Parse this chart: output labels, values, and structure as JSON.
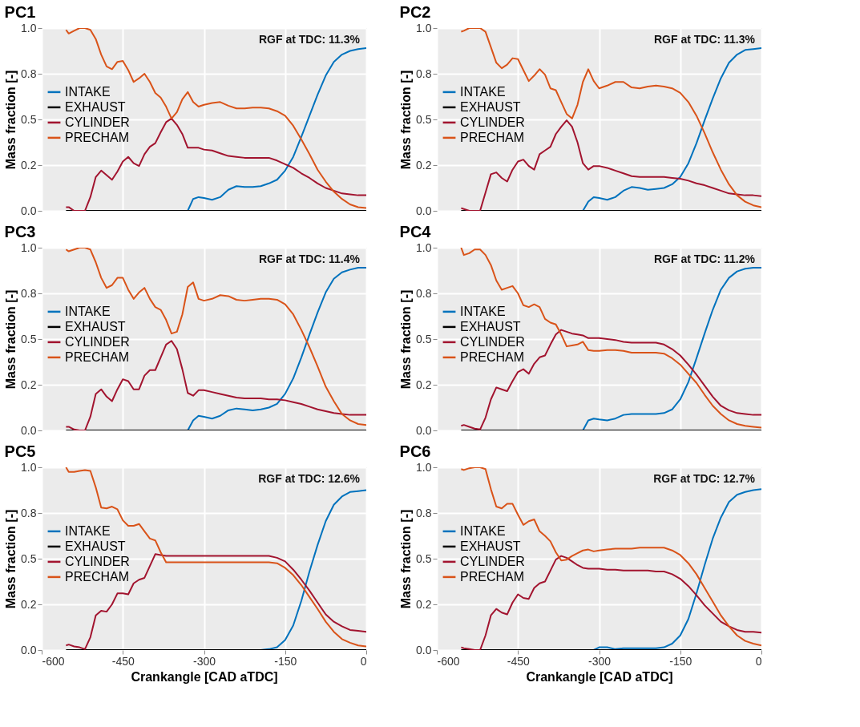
{
  "chart_data": [
    {
      "type": "line",
      "title": "PC1",
      "ylabel": "Mass fraction [-]",
      "annotations": [
        "RGF at TDC: 11.3%"
      ],
      "legend": "left",
      "grid": true,
      "tick_labels": "y",
      "xlim": [
        -600,
        0
      ],
      "xticks": [
        -600,
        -450,
        -300,
        -150,
        0
      ],
      "ylim": [
        0,
        1
      ],
      "yticks": [
        {
          "value": 0,
          "label": "0.0"
        },
        {
          "value": 0.25,
          "label": "0.2"
        },
        {
          "value": 0.5,
          "label": "0.5"
        },
        {
          "value": 0.75,
          "label": "0.8"
        },
        {
          "value": 1,
          "label": "1.0"
        }
      ],
      "x": [
        -555,
        -550,
        -540,
        -530,
        -520,
        -510,
        -500,
        -490,
        -480,
        -470,
        -460,
        -450,
        -440,
        -430,
        -420,
        -410,
        -400,
        -390,
        -380,
        -370,
        -360,
        -350,
        -340,
        -330,
        -320,
        -310,
        -300,
        -285,
        -270,
        -255,
        -240,
        -225,
        -210,
        -195,
        -180,
        -165,
        -150,
        -135,
        -120,
        -105,
        -90,
        -75,
        -60,
        -45,
        -30,
        -15,
        0
      ],
      "series": [
        {
          "name": "INTAKE",
          "color": "#0072bd",
          "values": [
            null,
            null,
            null,
            null,
            null,
            null,
            null,
            null,
            null,
            null,
            null,
            null,
            null,
            null,
            null,
            null,
            null,
            null,
            null,
            null,
            null,
            null,
            null,
            0,
            0.065,
            0.075,
            0.07,
            0.06,
            0.075,
            0.115,
            0.135,
            0.13,
            0.13,
            0.135,
            0.15,
            0.17,
            0.22,
            0.295,
            0.405,
            0.52,
            0.635,
            0.74,
            0.815,
            0.855,
            0.875,
            0.885,
            0.89
          ]
        },
        {
          "name": "EXHAUST",
          "color": "#000000",
          "values": [
            0,
            0,
            0,
            0,
            0,
            0,
            0,
            0,
            0,
            0,
            0,
            0,
            0,
            0,
            0,
            0,
            0,
            0,
            0,
            0,
            0,
            0,
            0,
            0,
            0,
            0,
            0,
            0,
            0,
            0,
            0,
            0,
            0,
            0,
            0,
            0,
            0,
            0,
            0,
            0,
            0,
            0,
            0,
            0,
            0,
            0,
            0
          ]
        },
        {
          "name": "CYLINDER",
          "color": "#a2142f",
          "values": [
            0.02,
            0.02,
            0.0,
            0.0,
            0.0,
            0.075,
            0.185,
            0.22,
            0.195,
            0.17,
            0.215,
            0.27,
            0.295,
            0.26,
            0.245,
            0.31,
            0.35,
            0.37,
            0.43,
            0.485,
            0.505,
            0.47,
            0.42,
            0.345,
            0.345,
            0.345,
            0.335,
            0.33,
            0.315,
            0.3,
            0.295,
            0.29,
            0.29,
            0.29,
            0.29,
            0.275,
            0.255,
            0.235,
            0.205,
            0.18,
            0.15,
            0.125,
            0.11,
            0.095,
            0.09,
            0.085,
            0.085
          ]
        },
        {
          "name": "PRECHAM",
          "color": "#d95319",
          "values": [
            0.99,
            0.97,
            0.985,
            1.0,
            1.0,
            0.99,
            0.94,
            0.855,
            0.79,
            0.775,
            0.815,
            0.82,
            0.77,
            0.705,
            0.725,
            0.75,
            0.705,
            0.645,
            0.62,
            0.57,
            0.505,
            0.54,
            0.61,
            0.65,
            0.595,
            0.57,
            0.58,
            0.59,
            0.595,
            0.575,
            0.56,
            0.56,
            0.565,
            0.565,
            0.56,
            0.545,
            0.52,
            0.465,
            0.39,
            0.31,
            0.225,
            0.16,
            0.105,
            0.065,
            0.035,
            0.02,
            0.015
          ]
        }
      ]
    },
    {
      "type": "line",
      "title": "PC2",
      "ylabel": "Mass fraction [-]",
      "annotations": [
        "RGF at TDC: 11.3%"
      ],
      "legend": "left",
      "grid": true,
      "tick_labels": "y",
      "xlim": [
        -600,
        0
      ],
      "xticks": [
        -600,
        -450,
        -300,
        -150,
        0
      ],
      "ylim": [
        0,
        1
      ],
      "yticks": [
        {
          "value": 0,
          "label": "0.0"
        },
        {
          "value": 0.25,
          "label": "0.2"
        },
        {
          "value": 0.5,
          "label": "0.5"
        },
        {
          "value": 0.75,
          "label": "0.8"
        },
        {
          "value": 1,
          "label": "1.0"
        }
      ],
      "x": [
        -555,
        -550,
        -540,
        -530,
        -520,
        -510,
        -500,
        -490,
        -480,
        -470,
        -460,
        -450,
        -440,
        -430,
        -420,
        -410,
        -400,
        -390,
        -380,
        -370,
        -360,
        -350,
        -340,
        -330,
        -320,
        -310,
        -300,
        -285,
        -270,
        -255,
        -240,
        -225,
        -210,
        -195,
        -180,
        -165,
        -150,
        -135,
        -120,
        -105,
        -90,
        -75,
        -60,
        -45,
        -30,
        -15,
        0
      ],
      "series": [
        {
          "name": "INTAKE",
          "color": "#0072bd",
          "values": [
            null,
            null,
            null,
            null,
            null,
            null,
            null,
            null,
            null,
            null,
            null,
            null,
            null,
            null,
            null,
            null,
            null,
            null,
            null,
            null,
            null,
            null,
            null,
            0,
            0.05,
            0.075,
            0.07,
            0.06,
            0.075,
            0.11,
            0.13,
            0.125,
            0.115,
            0.12,
            0.125,
            0.145,
            0.185,
            0.26,
            0.37,
            0.495,
            0.615,
            0.725,
            0.81,
            0.855,
            0.88,
            0.885,
            0.89
          ]
        },
        {
          "name": "EXHAUST",
          "color": "#000000",
          "values": [
            0,
            0,
            0,
            0,
            0,
            0,
            0,
            0,
            0,
            0,
            0,
            0,
            0,
            0,
            0,
            0,
            0,
            0,
            0,
            0,
            0,
            0,
            0,
            0,
            0,
            0,
            0,
            0,
            0,
            0,
            0,
            0,
            0,
            0,
            0,
            0,
            0,
            0,
            0,
            0,
            0,
            0,
            0,
            0,
            0,
            0,
            0
          ]
        },
        {
          "name": "CYLINDER",
          "color": "#a2142f",
          "values": [
            0.015,
            0.01,
            0,
            0,
            0,
            0.1,
            0.2,
            0.21,
            0.18,
            0.16,
            0.225,
            0.27,
            0.28,
            0.245,
            0.225,
            0.31,
            0.33,
            0.35,
            0.42,
            0.46,
            0.495,
            0.46,
            0.375,
            0.26,
            0.225,
            0.245,
            0.245,
            0.235,
            0.22,
            0.205,
            0.19,
            0.185,
            0.185,
            0.185,
            0.185,
            0.18,
            0.175,
            0.165,
            0.15,
            0.14,
            0.125,
            0.11,
            0.095,
            0.09,
            0.085,
            0.085,
            0.08
          ]
        },
        {
          "name": "PRECHAM",
          "color": "#d95319",
          "values": [
            0.98,
            0.985,
            1.0,
            1.0,
            1.0,
            0.98,
            0.895,
            0.81,
            0.78,
            0.8,
            0.835,
            0.83,
            0.77,
            0.71,
            0.74,
            0.775,
            0.745,
            0.67,
            0.66,
            0.595,
            0.53,
            0.505,
            0.58,
            0.705,
            0.775,
            0.71,
            0.67,
            0.685,
            0.705,
            0.705,
            0.675,
            0.67,
            0.68,
            0.685,
            0.68,
            0.67,
            0.645,
            0.595,
            0.52,
            0.425,
            0.32,
            0.225,
            0.145,
            0.085,
            0.05,
            0.03,
            0.02
          ]
        }
      ]
    },
    {
      "type": "line",
      "title": "PC3",
      "ylabel": "Mass fraction [-]",
      "annotations": [
        "RGF at TDC: 11.4%"
      ],
      "legend": "left",
      "grid": true,
      "tick_labels": "y",
      "xlim": [
        -600,
        0
      ],
      "xticks": [
        -600,
        -450,
        -300,
        -150,
        0
      ],
      "ylim": [
        0,
        1
      ],
      "yticks": [
        {
          "value": 0,
          "label": "0.0"
        },
        {
          "value": 0.25,
          "label": "0.2"
        },
        {
          "value": 0.5,
          "label": "0.5"
        },
        {
          "value": 0.75,
          "label": "0.8"
        },
        {
          "value": 1,
          "label": "1.0"
        }
      ],
      "x": [
        -555,
        -550,
        -540,
        -530,
        -520,
        -510,
        -500,
        -490,
        -480,
        -470,
        -460,
        -450,
        -440,
        -430,
        -420,
        -410,
        -400,
        -390,
        -380,
        -370,
        -360,
        -350,
        -340,
        -330,
        -320,
        -310,
        -300,
        -285,
        -270,
        -255,
        -240,
        -225,
        -210,
        -195,
        -180,
        -165,
        -150,
        -135,
        -120,
        -105,
        -90,
        -75,
        -60,
        -45,
        -30,
        -15,
        0
      ],
      "series": [
        {
          "name": "INTAKE",
          "color": "#0072bd",
          "values": [
            null,
            null,
            null,
            null,
            null,
            null,
            null,
            null,
            null,
            null,
            null,
            null,
            null,
            null,
            null,
            null,
            null,
            null,
            null,
            null,
            null,
            null,
            null,
            0,
            0.055,
            0.08,
            0.075,
            0.065,
            0.08,
            0.11,
            0.12,
            0.115,
            0.11,
            0.115,
            0.125,
            0.145,
            0.2,
            0.285,
            0.4,
            0.525,
            0.645,
            0.755,
            0.83,
            0.865,
            0.88,
            0.89,
            0.89
          ]
        },
        {
          "name": "EXHAUST",
          "color": "#000000",
          "values": [
            0,
            0,
            0,
            0,
            0,
            0,
            0,
            0,
            0,
            0,
            0,
            0,
            0,
            0,
            0,
            0,
            0,
            0,
            0,
            0,
            0,
            0,
            0,
            0,
            0,
            0,
            0,
            0,
            0,
            0,
            0,
            0,
            0,
            0,
            0,
            0,
            0,
            0,
            0,
            0,
            0,
            0,
            0,
            0,
            0,
            0,
            0
          ]
        },
        {
          "name": "CYLINDER",
          "color": "#a2142f",
          "values": [
            0.02,
            0.02,
            0.005,
            0,
            0,
            0.075,
            0.2,
            0.225,
            0.185,
            0.16,
            0.225,
            0.28,
            0.27,
            0.225,
            0.225,
            0.3,
            0.33,
            0.33,
            0.4,
            0.47,
            0.49,
            0.445,
            0.335,
            0.205,
            0.19,
            0.22,
            0.22,
            0.21,
            0.2,
            0.19,
            0.18,
            0.175,
            0.175,
            0.175,
            0.17,
            0.17,
            0.165,
            0.155,
            0.145,
            0.13,
            0.115,
            0.105,
            0.095,
            0.09,
            0.085,
            0.085,
            0.085
          ]
        },
        {
          "name": "PRECHAM",
          "color": "#d95319",
          "values": [
            0.99,
            0.98,
            0.99,
            1.0,
            1.0,
            0.99,
            0.92,
            0.835,
            0.78,
            0.795,
            0.835,
            0.835,
            0.77,
            0.72,
            0.755,
            0.78,
            0.72,
            0.675,
            0.66,
            0.605,
            0.53,
            0.54,
            0.635,
            0.785,
            0.81,
            0.72,
            0.71,
            0.72,
            0.74,
            0.735,
            0.715,
            0.71,
            0.715,
            0.72,
            0.72,
            0.715,
            0.69,
            0.635,
            0.55,
            0.455,
            0.35,
            0.24,
            0.16,
            0.09,
            0.055,
            0.035,
            0.03
          ]
        }
      ]
    },
    {
      "type": "line",
      "title": "PC4",
      "ylabel": "Mass fraction [-]",
      "annotations": [
        "RGF at TDC: 11.2%"
      ],
      "legend": "left",
      "grid": true,
      "tick_labels": "y",
      "xlim": [
        -600,
        0
      ],
      "xticks": [
        -600,
        -450,
        -300,
        -150,
        0
      ],
      "ylim": [
        0,
        1
      ],
      "yticks": [
        {
          "value": 0,
          "label": "0.0"
        },
        {
          "value": 0.25,
          "label": "0.2"
        },
        {
          "value": 0.5,
          "label": "0.5"
        },
        {
          "value": 0.75,
          "label": "0.8"
        },
        {
          "value": 1,
          "label": "1.0"
        }
      ],
      "x": [
        -555,
        -550,
        -540,
        -530,
        -520,
        -510,
        -500,
        -490,
        -480,
        -470,
        -460,
        -450,
        -440,
        -430,
        -420,
        -410,
        -400,
        -390,
        -380,
        -370,
        -360,
        -350,
        -340,
        -330,
        -320,
        -310,
        -300,
        -285,
        -270,
        -255,
        -240,
        -225,
        -210,
        -195,
        -180,
        -165,
        -150,
        -135,
        -120,
        -105,
        -90,
        -75,
        -60,
        -45,
        -30,
        -15,
        0
      ],
      "series": [
        {
          "name": "INTAKE",
          "color": "#0072bd",
          "values": [
            null,
            null,
            null,
            null,
            null,
            null,
            null,
            null,
            null,
            null,
            null,
            null,
            null,
            null,
            null,
            null,
            null,
            null,
            null,
            null,
            null,
            null,
            null,
            0,
            0.055,
            0.065,
            0.06,
            0.055,
            0.065,
            0.085,
            0.09,
            0.09,
            0.09,
            0.09,
            0.095,
            0.115,
            0.17,
            0.265,
            0.395,
            0.53,
            0.66,
            0.77,
            0.835,
            0.87,
            0.885,
            0.89,
            0.89
          ]
        },
        {
          "name": "EXHAUST",
          "color": "#000000",
          "values": [
            0,
            0,
            0,
            0,
            0,
            0,
            0,
            0,
            0,
            0,
            0,
            0,
            0,
            0,
            0,
            0,
            0,
            0,
            0,
            0,
            0,
            0,
            0,
            0,
            0,
            0,
            0,
            0,
            0,
            0,
            0,
            0,
            0,
            0,
            0,
            0,
            0,
            0,
            0,
            0,
            0,
            0,
            0,
            0,
            0,
            0,
            0
          ]
        },
        {
          "name": "CYLINDER",
          "color": "#a2142f",
          "values": [
            0.025,
            0.03,
            0.02,
            0.01,
            0.005,
            0.07,
            0.17,
            0.235,
            0.225,
            0.215,
            0.27,
            0.32,
            0.335,
            0.31,
            0.365,
            0.4,
            0.41,
            0.47,
            0.525,
            0.55,
            0.54,
            0.53,
            0.525,
            0.52,
            0.505,
            0.505,
            0.505,
            0.5,
            0.495,
            0.485,
            0.48,
            0.48,
            0.48,
            0.48,
            0.47,
            0.445,
            0.41,
            0.36,
            0.305,
            0.245,
            0.185,
            0.135,
            0.11,
            0.095,
            0.09,
            0.085,
            0.085
          ]
        },
        {
          "name": "PRECHAM",
          "color": "#d95319",
          "values": [
            1.0,
            0.96,
            0.97,
            0.99,
            0.99,
            0.96,
            0.905,
            0.82,
            0.77,
            0.78,
            0.79,
            0.75,
            0.685,
            0.675,
            0.69,
            0.675,
            0.61,
            0.59,
            0.58,
            0.525,
            0.46,
            0.465,
            0.47,
            0.485,
            0.44,
            0.435,
            0.435,
            0.44,
            0.44,
            0.435,
            0.425,
            0.425,
            0.425,
            0.425,
            0.42,
            0.395,
            0.36,
            0.31,
            0.26,
            0.195,
            0.135,
            0.09,
            0.055,
            0.035,
            0.025,
            0.02,
            0.015
          ]
        }
      ]
    },
    {
      "type": "line",
      "title": "PC5",
      "xlabel": "Crankangle [CAD aTDC]",
      "ylabel": "Mass fraction [-]",
      "annotations": [
        "RGF at TDC: 12.6%"
      ],
      "legend": "left",
      "grid": true,
      "xlim": [
        -600,
        0
      ],
      "xticks": [
        -600,
        -450,
        -300,
        -150,
        0
      ],
      "ylim": [
        0,
        1
      ],
      "yticks": [
        {
          "value": 0,
          "label": "0.0"
        },
        {
          "value": 0.25,
          "label": "0.2"
        },
        {
          "value": 0.5,
          "label": "0.5"
        },
        {
          "value": 0.75,
          "label": "0.8"
        },
        {
          "value": 1,
          "label": "1.0"
        }
      ],
      "x": [
        -555,
        -550,
        -540,
        -530,
        -520,
        -510,
        -500,
        -490,
        -480,
        -470,
        -460,
        -450,
        -440,
        -430,
        -420,
        -410,
        -400,
        -390,
        -380,
        -370,
        -360,
        -350,
        -340,
        -330,
        -320,
        -310,
        -300,
        -285,
        -270,
        -255,
        -240,
        -225,
        -210,
        -195,
        -180,
        -165,
        -150,
        -135,
        -120,
        -105,
        -90,
        -75,
        -60,
        -45,
        -30,
        -15,
        0
      ],
      "series": [
        {
          "name": "INTAKE",
          "color": "#0072bd",
          "values": [
            null,
            null,
            null,
            null,
            null,
            null,
            null,
            null,
            null,
            null,
            null,
            null,
            null,
            null,
            null,
            null,
            null,
            null,
            null,
            null,
            null,
            null,
            null,
            null,
            null,
            null,
            null,
            null,
            null,
            null,
            null,
            null,
            null,
            0,
            0.005,
            0.015,
            0.055,
            0.135,
            0.27,
            0.43,
            0.575,
            0.705,
            0.795,
            0.84,
            0.865,
            0.87,
            0.875
          ]
        },
        {
          "name": "EXHAUST",
          "color": "#000000",
          "values": [
            0,
            0,
            0,
            0,
            0,
            0,
            0,
            0,
            0,
            0,
            0,
            0,
            0,
            0,
            0,
            0,
            0,
            0,
            0,
            0,
            0,
            0,
            0,
            0,
            0,
            0,
            0,
            0,
            0,
            0,
            0,
            0,
            0,
            0,
            0,
            0,
            0,
            0,
            0,
            0,
            0,
            0,
            0,
            0,
            0,
            0,
            0
          ]
        },
        {
          "name": "CYLINDER",
          "color": "#a2142f",
          "values": [
            0.025,
            0.03,
            0.02,
            0.015,
            0.005,
            0.07,
            0.19,
            0.215,
            0.21,
            0.25,
            0.31,
            0.31,
            0.305,
            0.365,
            0.385,
            0.395,
            0.46,
            0.525,
            0.52,
            0.515,
            0.515,
            0.515,
            0.515,
            0.515,
            0.515,
            0.515,
            0.515,
            0.515,
            0.515,
            0.515,
            0.515,
            0.515,
            0.515,
            0.515,
            0.515,
            0.505,
            0.485,
            0.44,
            0.385,
            0.325,
            0.26,
            0.195,
            0.155,
            0.13,
            0.11,
            0.105,
            0.1
          ]
        },
        {
          "name": "PRECHAM",
          "color": "#d95319",
          "values": [
            1.0,
            0.975,
            0.975,
            0.98,
            0.985,
            0.98,
            0.89,
            0.78,
            0.775,
            0.785,
            0.77,
            0.71,
            0.68,
            0.68,
            0.69,
            0.65,
            0.61,
            0.6,
            0.535,
            0.48,
            0.48,
            0.48,
            0.48,
            0.48,
            0.48,
            0.48,
            0.48,
            0.48,
            0.48,
            0.48,
            0.48,
            0.48,
            0.48,
            0.48,
            0.48,
            0.475,
            0.45,
            0.41,
            0.355,
            0.29,
            0.225,
            0.155,
            0.1,
            0.06,
            0.04,
            0.025,
            0.02
          ]
        }
      ]
    },
    {
      "type": "line",
      "title": "PC6",
      "xlabel": "Crankangle [CAD aTDC]",
      "ylabel": "Mass fraction [-]",
      "annotations": [
        "RGF at TDC: 12.7%"
      ],
      "legend": "left",
      "grid": true,
      "xlim": [
        -600,
        0
      ],
      "xticks": [
        -600,
        -450,
        -300,
        -150,
        0
      ],
      "ylim": [
        0,
        1
      ],
      "yticks": [
        {
          "value": 0,
          "label": "0.0"
        },
        {
          "value": 0.25,
          "label": "0.2"
        },
        {
          "value": 0.5,
          "label": "0.5"
        },
        {
          "value": 0.75,
          "label": "0.8"
        },
        {
          "value": 1,
          "label": "1.0"
        }
      ],
      "x": [
        -555,
        -550,
        -540,
        -530,
        -520,
        -510,
        -500,
        -490,
        -480,
        -470,
        -460,
        -450,
        -440,
        -430,
        -420,
        -410,
        -400,
        -390,
        -380,
        -370,
        -360,
        -350,
        -340,
        -330,
        -320,
        -310,
        -300,
        -285,
        -270,
        -255,
        -240,
        -225,
        -210,
        -195,
        -180,
        -165,
        -150,
        -135,
        -120,
        -105,
        -90,
        -75,
        -60,
        -45,
        -30,
        -15,
        0
      ],
      "series": [
        {
          "name": "INTAKE",
          "color": "#0072bd",
          "values": [
            null,
            null,
            null,
            null,
            null,
            null,
            null,
            null,
            null,
            null,
            null,
            null,
            null,
            null,
            null,
            null,
            null,
            null,
            null,
            null,
            null,
            null,
            null,
            null,
            null,
            0,
            0.015,
            0.015,
            0.005,
            0.01,
            0.01,
            0.01,
            0.01,
            0.01,
            0.015,
            0.035,
            0.08,
            0.17,
            0.31,
            0.465,
            0.61,
            0.725,
            0.81,
            0.85,
            0.865,
            0.875,
            0.88
          ]
        },
        {
          "name": "EXHAUST",
          "color": "#000000",
          "values": [
            0,
            0,
            0,
            0,
            0,
            0,
            0,
            0,
            0,
            0,
            0,
            0,
            0,
            0,
            0,
            0,
            0,
            0,
            0,
            0,
            0,
            0,
            0,
            0,
            0,
            0,
            0,
            0,
            0,
            0,
            0,
            0,
            0,
            0,
            0,
            0,
            0,
            0,
            0,
            0,
            0,
            0,
            0,
            0,
            0,
            0,
            0
          ]
        },
        {
          "name": "CYLINDER",
          "color": "#a2142f",
          "values": [
            0.015,
            0.01,
            0.005,
            0,
            0,
            0.08,
            0.19,
            0.225,
            0.205,
            0.195,
            0.26,
            0.305,
            0.285,
            0.28,
            0.34,
            0.365,
            0.375,
            0.435,
            0.495,
            0.515,
            0.505,
            0.485,
            0.465,
            0.45,
            0.445,
            0.445,
            0.445,
            0.44,
            0.44,
            0.435,
            0.435,
            0.435,
            0.435,
            0.43,
            0.43,
            0.415,
            0.39,
            0.35,
            0.3,
            0.245,
            0.2,
            0.155,
            0.13,
            0.11,
            0.1,
            0.1,
            0.095
          ]
        },
        {
          "name": "PRECHAM",
          "color": "#d95319",
          "values": [
            0.99,
            0.985,
            0.995,
            1.0,
            1.0,
            0.99,
            0.88,
            0.785,
            0.775,
            0.8,
            0.8,
            0.74,
            0.685,
            0.705,
            0.715,
            0.65,
            0.625,
            0.595,
            0.535,
            0.49,
            0.495,
            0.515,
            0.53,
            0.545,
            0.55,
            0.54,
            0.545,
            0.55,
            0.555,
            0.555,
            0.555,
            0.56,
            0.56,
            0.56,
            0.56,
            0.545,
            0.52,
            0.475,
            0.415,
            0.34,
            0.265,
            0.19,
            0.13,
            0.08,
            0.05,
            0.035,
            0.025
          ]
        }
      ]
    }
  ]
}
